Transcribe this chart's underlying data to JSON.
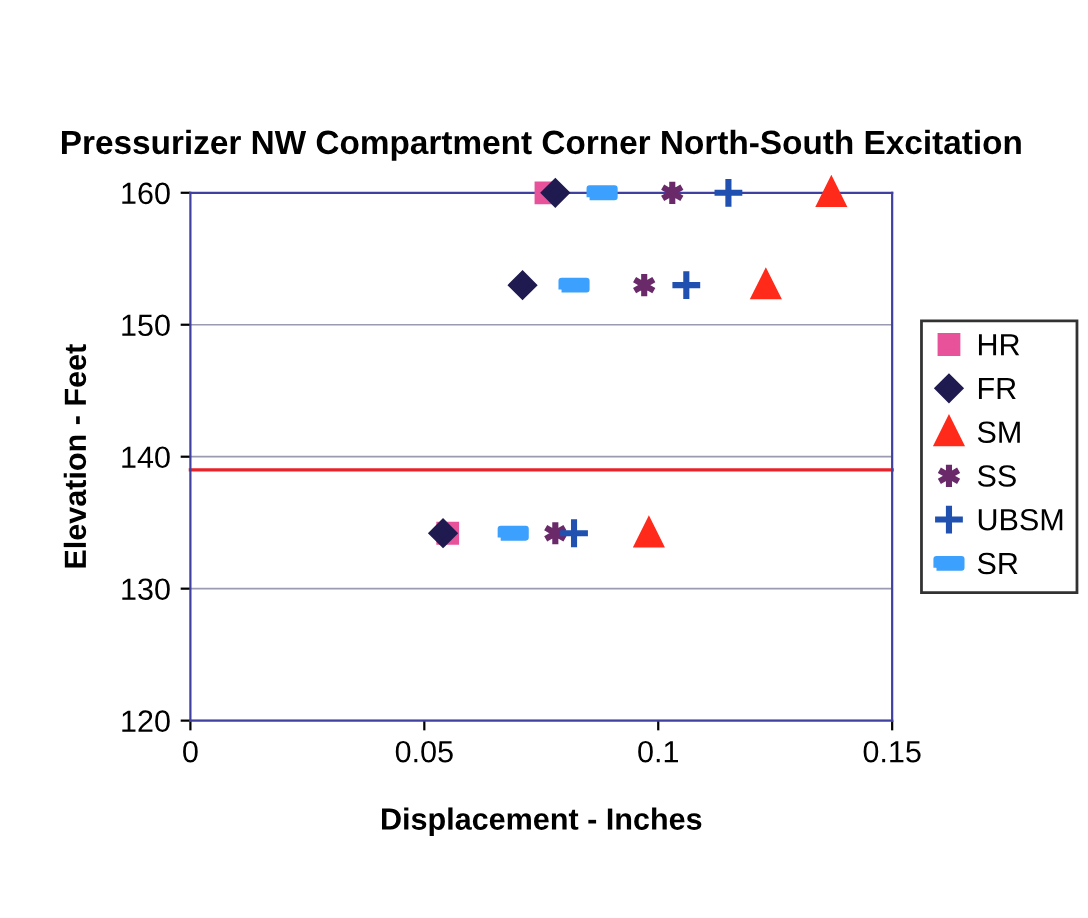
{
  "chart_data": {
    "type": "scatter",
    "title": "Pressurizer NW Compartment Corner North-South Excitation",
    "xlabel": "Displacement - Inches",
    "ylabel": "Elevation - Feet",
    "xlim": [
      0,
      0.15
    ],
    "xticks": [
      0,
      0.05,
      0.1,
      0.15
    ],
    "ylim": [
      120,
      160
    ],
    "yticks": [
      120,
      130,
      140,
      150,
      160
    ],
    "grid": "y",
    "legend": "right",
    "series": [
      {
        "name": "HR",
        "color": "#e8529a",
        "marker": "square",
        "x": [
          0.076,
          0.071,
          0.055
        ],
        "values": [
          160,
          null,
          134.2
        ]
      },
      {
        "name": "FR",
        "color": "#1f1a4f",
        "marker": "diamond",
        "x": [
          0.078,
          0.071,
          0.054
        ],
        "values": [
          160,
          153,
          134.2
        ]
      },
      {
        "name": "SM",
        "color": "#ff2a1a",
        "marker": "triangle",
        "x": [
          0.137,
          0.123,
          0.098
        ],
        "values": [
          160,
          153,
          134.2
        ]
      },
      {
        "name": "SS",
        "color": "#6a2a6a",
        "marker": "cross",
        "x": [
          0.103,
          0.097,
          0.078
        ],
        "values": [
          160,
          153,
          134.2
        ]
      },
      {
        "name": "UBSM",
        "color": "#2050b0",
        "marker": "cross",
        "x": [
          0.115,
          0.106,
          0.082
        ],
        "values": [
          160,
          153,
          134.2
        ]
      },
      {
        "name": "SR",
        "color": "#3ca0ff",
        "x": [
          0.088,
          0.082,
          0.069
        ],
        "values": [
          160,
          153,
          134.2
        ]
      }
    ],
    "ref_lines": [
      {
        "axis": "y",
        "value": 139,
        "color": "#e8222a"
      }
    ]
  }
}
